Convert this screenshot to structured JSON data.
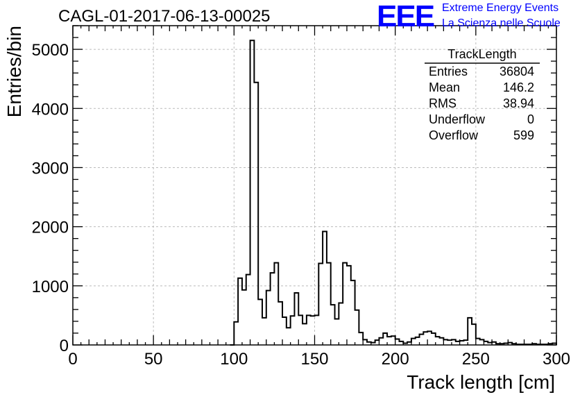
{
  "header": {
    "run_title": "CAGL-01-2017-06-13-00025",
    "logo_text": "EEE",
    "logo_line1": "Extreme Energy Events",
    "logo_line2": "La Scienza nelle Scuole"
  },
  "stats": {
    "title": "TrackLength",
    "rows": [
      {
        "label": "Entries",
        "value": "36804"
      },
      {
        "label": "Mean",
        "value": "146.2"
      },
      {
        "label": "RMS",
        "value": "38.94"
      },
      {
        "label": "Underflow",
        "value": "0"
      },
      {
        "label": "Overflow",
        "value": "599"
      }
    ]
  },
  "colors": {
    "logo": "#0000ff",
    "line": "#000000",
    "grid": "#bbbbbb"
  },
  "chart_data": {
    "type": "histogram",
    "xlabel": "Track length [cm]",
    "ylabel": "Entries/bin",
    "xlim": [
      0,
      300
    ],
    "ylim": [
      0,
      5400
    ],
    "grid": true,
    "legend_position": "top-right",
    "bin_width": 2.5,
    "x_ticks": [
      0,
      50,
      100,
      150,
      200,
      250,
      300
    ],
    "y_ticks": [
      0,
      1000,
      2000,
      3000,
      4000,
      5000
    ],
    "x_tick_labels": [
      "0",
      "50",
      "100",
      "150",
      "200",
      "250",
      "300"
    ],
    "y_tick_labels": [
      "0",
      "1000",
      "2000",
      "3000",
      "4000",
      "5000"
    ],
    "bin_starts": [
      97.5,
      100,
      102.5,
      105,
      107.5,
      110,
      112.5,
      115,
      117.5,
      120,
      122.5,
      125,
      127.5,
      130,
      132.5,
      135,
      137.5,
      140,
      142.5,
      145,
      147.5,
      150,
      152.5,
      155,
      157.5,
      160,
      162.5,
      165,
      167.5,
      170,
      172.5,
      175,
      177.5,
      180,
      182.5,
      185,
      187.5,
      190,
      192.5,
      195,
      197.5,
      200,
      202.5,
      205,
      207.5,
      210,
      212.5,
      215,
      217.5,
      220,
      222.5,
      225,
      227.5,
      230,
      232.5,
      235,
      237.5,
      240,
      242.5,
      245,
      247.5,
      250,
      252.5,
      255,
      257.5,
      260,
      262.5,
      265,
      267.5,
      270,
      272.5,
      275,
      277.5,
      280,
      282.5,
      285,
      287.5,
      290,
      292.5,
      295,
      297.5
    ],
    "values": [
      0,
      390,
      1130,
      930,
      1190,
      5150,
      4440,
      770,
      460,
      920,
      1220,
      1390,
      730,
      470,
      290,
      490,
      880,
      500,
      360,
      500,
      490,
      500,
      1380,
      1920,
      1390,
      680,
      440,
      710,
      1390,
      1340,
      1090,
      590,
      210,
      90,
      50,
      40,
      80,
      120,
      200,
      140,
      150,
      100,
      60,
      30,
      50,
      110,
      130,
      180,
      220,
      230,
      200,
      140,
      120,
      90,
      80,
      90,
      60,
      70,
      80,
      460,
      350,
      110,
      90,
      60,
      40,
      50,
      20,
      20,
      30,
      40,
      20,
      10,
      10,
      10,
      10,
      20,
      10,
      10,
      10,
      20,
      30
    ]
  }
}
